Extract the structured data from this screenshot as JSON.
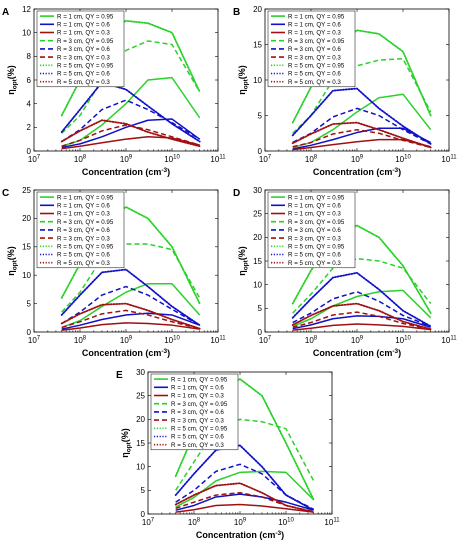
{
  "colors": {
    "r1": "#2ad12a",
    "r2": "#1010c8",
    "r3": "#a01010"
  },
  "legend": [
    {
      "label": "R = 1 cm, QY = 0.95",
      "color": "#2ad12a",
      "style": "solid"
    },
    {
      "label": "R = 1 cm, QY = 0.6",
      "color": "#1010c8",
      "style": "solid"
    },
    {
      "label": "R = 1 cm, QY = 0.3",
      "color": "#a01010",
      "style": "solid"
    },
    {
      "label": "R = 3 cm, QY = 0.95",
      "color": "#2ad12a",
      "style": "dashed"
    },
    {
      "label": "R = 3 cm, QY = 0.6",
      "color": "#1010c8",
      "style": "dashed"
    },
    {
      "label": "R = 3 cm, QY = 0.3",
      "color": "#a01010",
      "style": "dashed"
    },
    {
      "label": "R = 5 cm, QY = 0.95",
      "color": "#2ad12a",
      "style": "dotted"
    },
    {
      "label": "R = 5 cm, QY = 0.6",
      "color": "#1010c8",
      "style": "dotted"
    },
    {
      "label": "R = 5 cm, QY = 0.3",
      "color": "#a01010",
      "style": "dotted"
    }
  ],
  "chart_data": [
    {
      "panel": "A",
      "type": "line",
      "xscale": "log",
      "xlim": [
        10000000.0,
        100000000000.0
      ],
      "ylim": [
        0,
        12
      ],
      "xlabel": "Concentration (cm-3)",
      "ylabel": "ηopt(%)",
      "xticks": [
        "10^7",
        "10^8",
        "10^9",
        "10^10",
        "10^11"
      ],
      "yticks": [
        0,
        2,
        4,
        6,
        8,
        10,
        12
      ],
      "x": [
        40000000.0,
        100000000.0,
        300000000.0,
        1000000000.0,
        3000000000.0,
        10000000000.0,
        40000000000.0
      ],
      "series": [
        {
          "name": "R = 1 cm, QY = 0.95",
          "values": [
            0.4,
            0.9,
            2.2,
            4.0,
            6.0,
            6.2,
            2.8
          ]
        },
        {
          "name": "R = 1 cm, QY = 0.6",
          "values": [
            0.3,
            0.6,
            1.2,
            2.0,
            2.6,
            2.7,
            1.0
          ]
        },
        {
          "name": "R = 1 cm, QY = 0.3",
          "values": [
            0.2,
            0.4,
            0.7,
            1.0,
            1.2,
            1.1,
            0.5
          ]
        },
        {
          "name": "R = 3 cm, QY = 0.95",
          "values": [
            1.5,
            3.0,
            6.0,
            8.5,
            9.3,
            9.0,
            5.0
          ]
        },
        {
          "name": "R = 3 cm, QY = 0.6",
          "values": [
            0.8,
            1.8,
            3.5,
            4.3,
            3.5,
            2.4,
            1.0
          ]
        },
        {
          "name": "R = 3 cm, QY = 0.3",
          "values": [
            0.4,
            0.9,
            1.7,
            2.2,
            1.8,
            1.2,
            0.5
          ]
        },
        {
          "name": "R = 5 cm, QY = 0.95",
          "values": [
            3.0,
            6.0,
            10.0,
            11.0,
            10.8,
            10.0,
            5.0
          ]
        },
        {
          "name": "R = 5 cm, QY = 0.6",
          "values": [
            1.6,
            3.5,
            5.8,
            5.2,
            3.8,
            2.3,
            0.8
          ]
        },
        {
          "name": "R = 5 cm, QY = 0.3",
          "values": [
            0.8,
            1.7,
            2.6,
            2.3,
            1.6,
            1.0,
            0.4
          ]
        }
      ]
    },
    {
      "panel": "B",
      "type": "line",
      "xscale": "log",
      "xlim": [
        10000000.0,
        100000000000.0
      ],
      "ylim": [
        0,
        20
      ],
      "xlabel": "Concentration (cm-3)",
      "ylabel": "ηopt(%)",
      "xticks": [
        "10^7",
        "10^8",
        "10^9",
        "10^10",
        "10^11"
      ],
      "yticks": [
        0,
        5,
        10,
        15,
        20
      ],
      "x": [
        40000000.0,
        100000000.0,
        300000000.0,
        1000000000.0,
        3000000000.0,
        10000000000.0,
        40000000000.0
      ],
      "series": [
        {
          "name": "R = 1 cm, QY = 0.95",
          "values": [
            0.5,
            1.2,
            3.0,
            5.5,
            7.5,
            8.0,
            3.0
          ]
        },
        {
          "name": "R = 1 cm, QY = 0.6",
          "values": [
            0.3,
            0.8,
            1.6,
            2.6,
            3.2,
            3.2,
            1.2
          ]
        },
        {
          "name": "R = 1 cm, QY = 0.3",
          "values": [
            0.2,
            0.5,
            0.9,
            1.3,
            1.6,
            1.6,
            0.6
          ]
        },
        {
          "name": "R = 3 cm, QY = 0.95",
          "values": [
            2.5,
            5.0,
            10.0,
            12.0,
            12.8,
            13.0,
            5.5
          ]
        },
        {
          "name": "R = 3 cm, QY = 0.6",
          "values": [
            1.2,
            2.5,
            4.8,
            6.0,
            5.0,
            3.0,
            1.0
          ]
        },
        {
          "name": "R = 3 cm, QY = 0.3",
          "values": [
            0.6,
            1.2,
            2.4,
            3.0,
            2.5,
            1.5,
            0.5
          ]
        },
        {
          "name": "R = 5 cm, QY = 0.95",
          "values": [
            4.0,
            9.0,
            14.5,
            17.0,
            16.5,
            14.0,
            5.0
          ]
        },
        {
          "name": "R = 5 cm, QY = 0.6",
          "values": [
            2.2,
            5.0,
            8.5,
            8.8,
            6.0,
            3.5,
            1.0
          ]
        },
        {
          "name": "R = 5 cm, QY = 0.3",
          "values": [
            1.1,
            2.4,
            3.8,
            4.0,
            3.0,
            1.8,
            0.5
          ]
        }
      ]
    },
    {
      "panel": "C",
      "type": "line",
      "xscale": "log",
      "xlim": [
        10000000.0,
        100000000000.0
      ],
      "ylim": [
        0,
        25
      ],
      "xlabel": "Concentration (cm-3)",
      "ylabel": "ηopt(%)",
      "xticks": [
        "10^7",
        "10^8",
        "10^9",
        "10^10",
        "10^11"
      ],
      "yticks": [
        0,
        5,
        10,
        15,
        20,
        25
      ],
      "x": [
        40000000.0,
        100000000.0,
        300000000.0,
        1000000000.0,
        3000000000.0,
        10000000000.0,
        40000000000.0
      ],
      "series": [
        {
          "name": "R = 1 cm, QY = 0.95",
          "values": [
            0.8,
            2.0,
            4.5,
            7.0,
            8.5,
            8.5,
            3.0
          ]
        },
        {
          "name": "R = 1 cm, QY = 0.6",
          "values": [
            0.5,
            1.2,
            2.2,
            3.0,
            3.3,
            3.0,
            1.2
          ]
        },
        {
          "name": "R = 1 cm, QY = 0.3",
          "values": [
            0.3,
            0.7,
            1.3,
            1.6,
            1.5,
            1.2,
            0.5
          ]
        },
        {
          "name": "R = 3 cm, QY = 0.95",
          "values": [
            3.5,
            7.0,
            13.0,
            15.5,
            15.5,
            14.5,
            6.0
          ]
        },
        {
          "name": "R = 3 cm, QY = 0.6",
          "values": [
            1.5,
            3.5,
            6.5,
            8.0,
            6.5,
            4.0,
            1.2
          ]
        },
        {
          "name": "R = 3 cm, QY = 0.3",
          "values": [
            0.8,
            1.8,
            3.2,
            3.8,
            3.0,
            1.8,
            0.6
          ]
        },
        {
          "name": "R = 5 cm, QY = 0.95",
          "values": [
            6.0,
            12.0,
            19.5,
            22.0,
            20.0,
            15.0,
            5.0
          ]
        },
        {
          "name": "R = 5 cm, QY = 0.6",
          "values": [
            3.0,
            6.5,
            10.5,
            11.0,
            8.0,
            4.5,
            1.2
          ]
        },
        {
          "name": "R = 5 cm, QY = 0.3",
          "values": [
            1.5,
            3.2,
            4.8,
            5.0,
            3.8,
            2.2,
            0.6
          ]
        }
      ]
    },
    {
      "panel": "D",
      "type": "line",
      "xscale": "log",
      "xlim": [
        10000000.0,
        100000000000.0
      ],
      "ylim": [
        0,
        30
      ],
      "xlabel": "Concentration (cm-3)",
      "ylabel": "ηopt(%)",
      "xticks": [
        "10^7",
        "10^8",
        "10^9",
        "10^10",
        "10^11"
      ],
      "yticks": [
        0,
        5,
        10,
        15,
        20,
        25,
        30
      ],
      "x": [
        40000000.0,
        100000000.0,
        300000000.0,
        1000000000.0,
        3000000000.0,
        10000000000.0,
        40000000000.0
      ],
      "series": [
        {
          "name": "R = 1 cm, QY = 0.95",
          "values": [
            1.2,
            2.8,
            5.5,
            7.5,
            8.5,
            8.8,
            3.0
          ]
        },
        {
          "name": "R = 1 cm, QY = 0.6",
          "values": [
            0.7,
            1.5,
            2.8,
            3.4,
            3.3,
            2.8,
            1.0
          ]
        },
        {
          "name": "R = 1 cm, QY = 0.3",
          "values": [
            0.4,
            0.8,
            1.4,
            1.7,
            1.5,
            1.2,
            0.5
          ]
        },
        {
          "name": "R = 3 cm, QY = 0.95",
          "values": [
            4.0,
            8.0,
            13.5,
            15.5,
            15.0,
            13.5,
            6.0
          ]
        },
        {
          "name": "R = 3 cm, QY = 0.6",
          "values": [
            2.0,
            4.0,
            7.0,
            8.5,
            6.5,
            3.5,
            1.2
          ]
        },
        {
          "name": "R = 3 cm, QY = 0.3",
          "values": [
            1.0,
            2.0,
            3.6,
            4.2,
            3.3,
            1.8,
            0.6
          ]
        },
        {
          "name": "R = 5 cm, QY = 0.95",
          "values": [
            6.0,
            13.0,
            20.0,
            22.5,
            20.0,
            14.0,
            4.0
          ]
        },
        {
          "name": "R = 5 cm, QY = 0.6",
          "values": [
            3.0,
            7.0,
            11.5,
            12.5,
            9.0,
            4.5,
            1.2
          ]
        },
        {
          "name": "R = 5 cm, QY = 0.3",
          "values": [
            1.5,
            3.5,
            5.5,
            6.0,
            4.5,
            2.2,
            0.6
          ]
        }
      ]
    },
    {
      "panel": "E",
      "type": "line",
      "xscale": "log",
      "xlim": [
        10000000.0,
        100000000000.0
      ],
      "ylim": [
        0,
        30
      ],
      "xlabel": "Concentration (cm-3)",
      "ylabel": "ηopt(%)",
      "xticks": [
        "10^7",
        "10^8",
        "10^9",
        "10^10",
        "10^11"
      ],
      "yticks": [
        0,
        5,
        10,
        15,
        20,
        25,
        30
      ],
      "x": [
        40000000.0,
        100000000.0,
        300000000.0,
        1000000000.0,
        3000000000.0,
        10000000000.0,
        40000000000.0
      ],
      "series": [
        {
          "name": "R = 1 cm, QY = 0.95",
          "values": [
            1.5,
            3.5,
            7.0,
            8.8,
            9.0,
            8.8,
            3.0
          ]
        },
        {
          "name": "R = 1 cm, QY = 0.6",
          "values": [
            0.8,
            1.8,
            3.6,
            4.2,
            3.6,
            2.5,
            0.8
          ]
        },
        {
          "name": "R = 1 cm, QY = 0.3",
          "values": [
            0.4,
            0.9,
            1.8,
            2.0,
            1.7,
            1.1,
            0.4
          ]
        },
        {
          "name": "R = 3 cm, QY = 0.95",
          "values": [
            5.0,
            11.0,
            18.0,
            20.0,
            19.5,
            18.0,
            7.0
          ]
        },
        {
          "name": "R = 3 cm, QY = 0.6",
          "values": [
            2.5,
            5.0,
            9.0,
            10.5,
            8.5,
            4.0,
            1.0
          ]
        },
        {
          "name": "R = 3 cm, QY = 0.3",
          "values": [
            1.2,
            2.5,
            4.0,
            4.5,
            3.6,
            1.8,
            0.5
          ]
        },
        {
          "name": "R = 5 cm, QY = 0.95",
          "values": [
            8.0,
            17.0,
            26.0,
            28.5,
            25.0,
            15.0,
            3.0
          ]
        },
        {
          "name": "R = 5 cm, QY = 0.6",
          "values": [
            4.0,
            8.5,
            13.5,
            14.5,
            10.0,
            4.0,
            0.8
          ]
        },
        {
          "name": "R = 5 cm, QY = 0.3",
          "values": [
            2.0,
            4.0,
            6.0,
            6.5,
            4.5,
            1.8,
            0.4
          ]
        }
      ]
    }
  ]
}
